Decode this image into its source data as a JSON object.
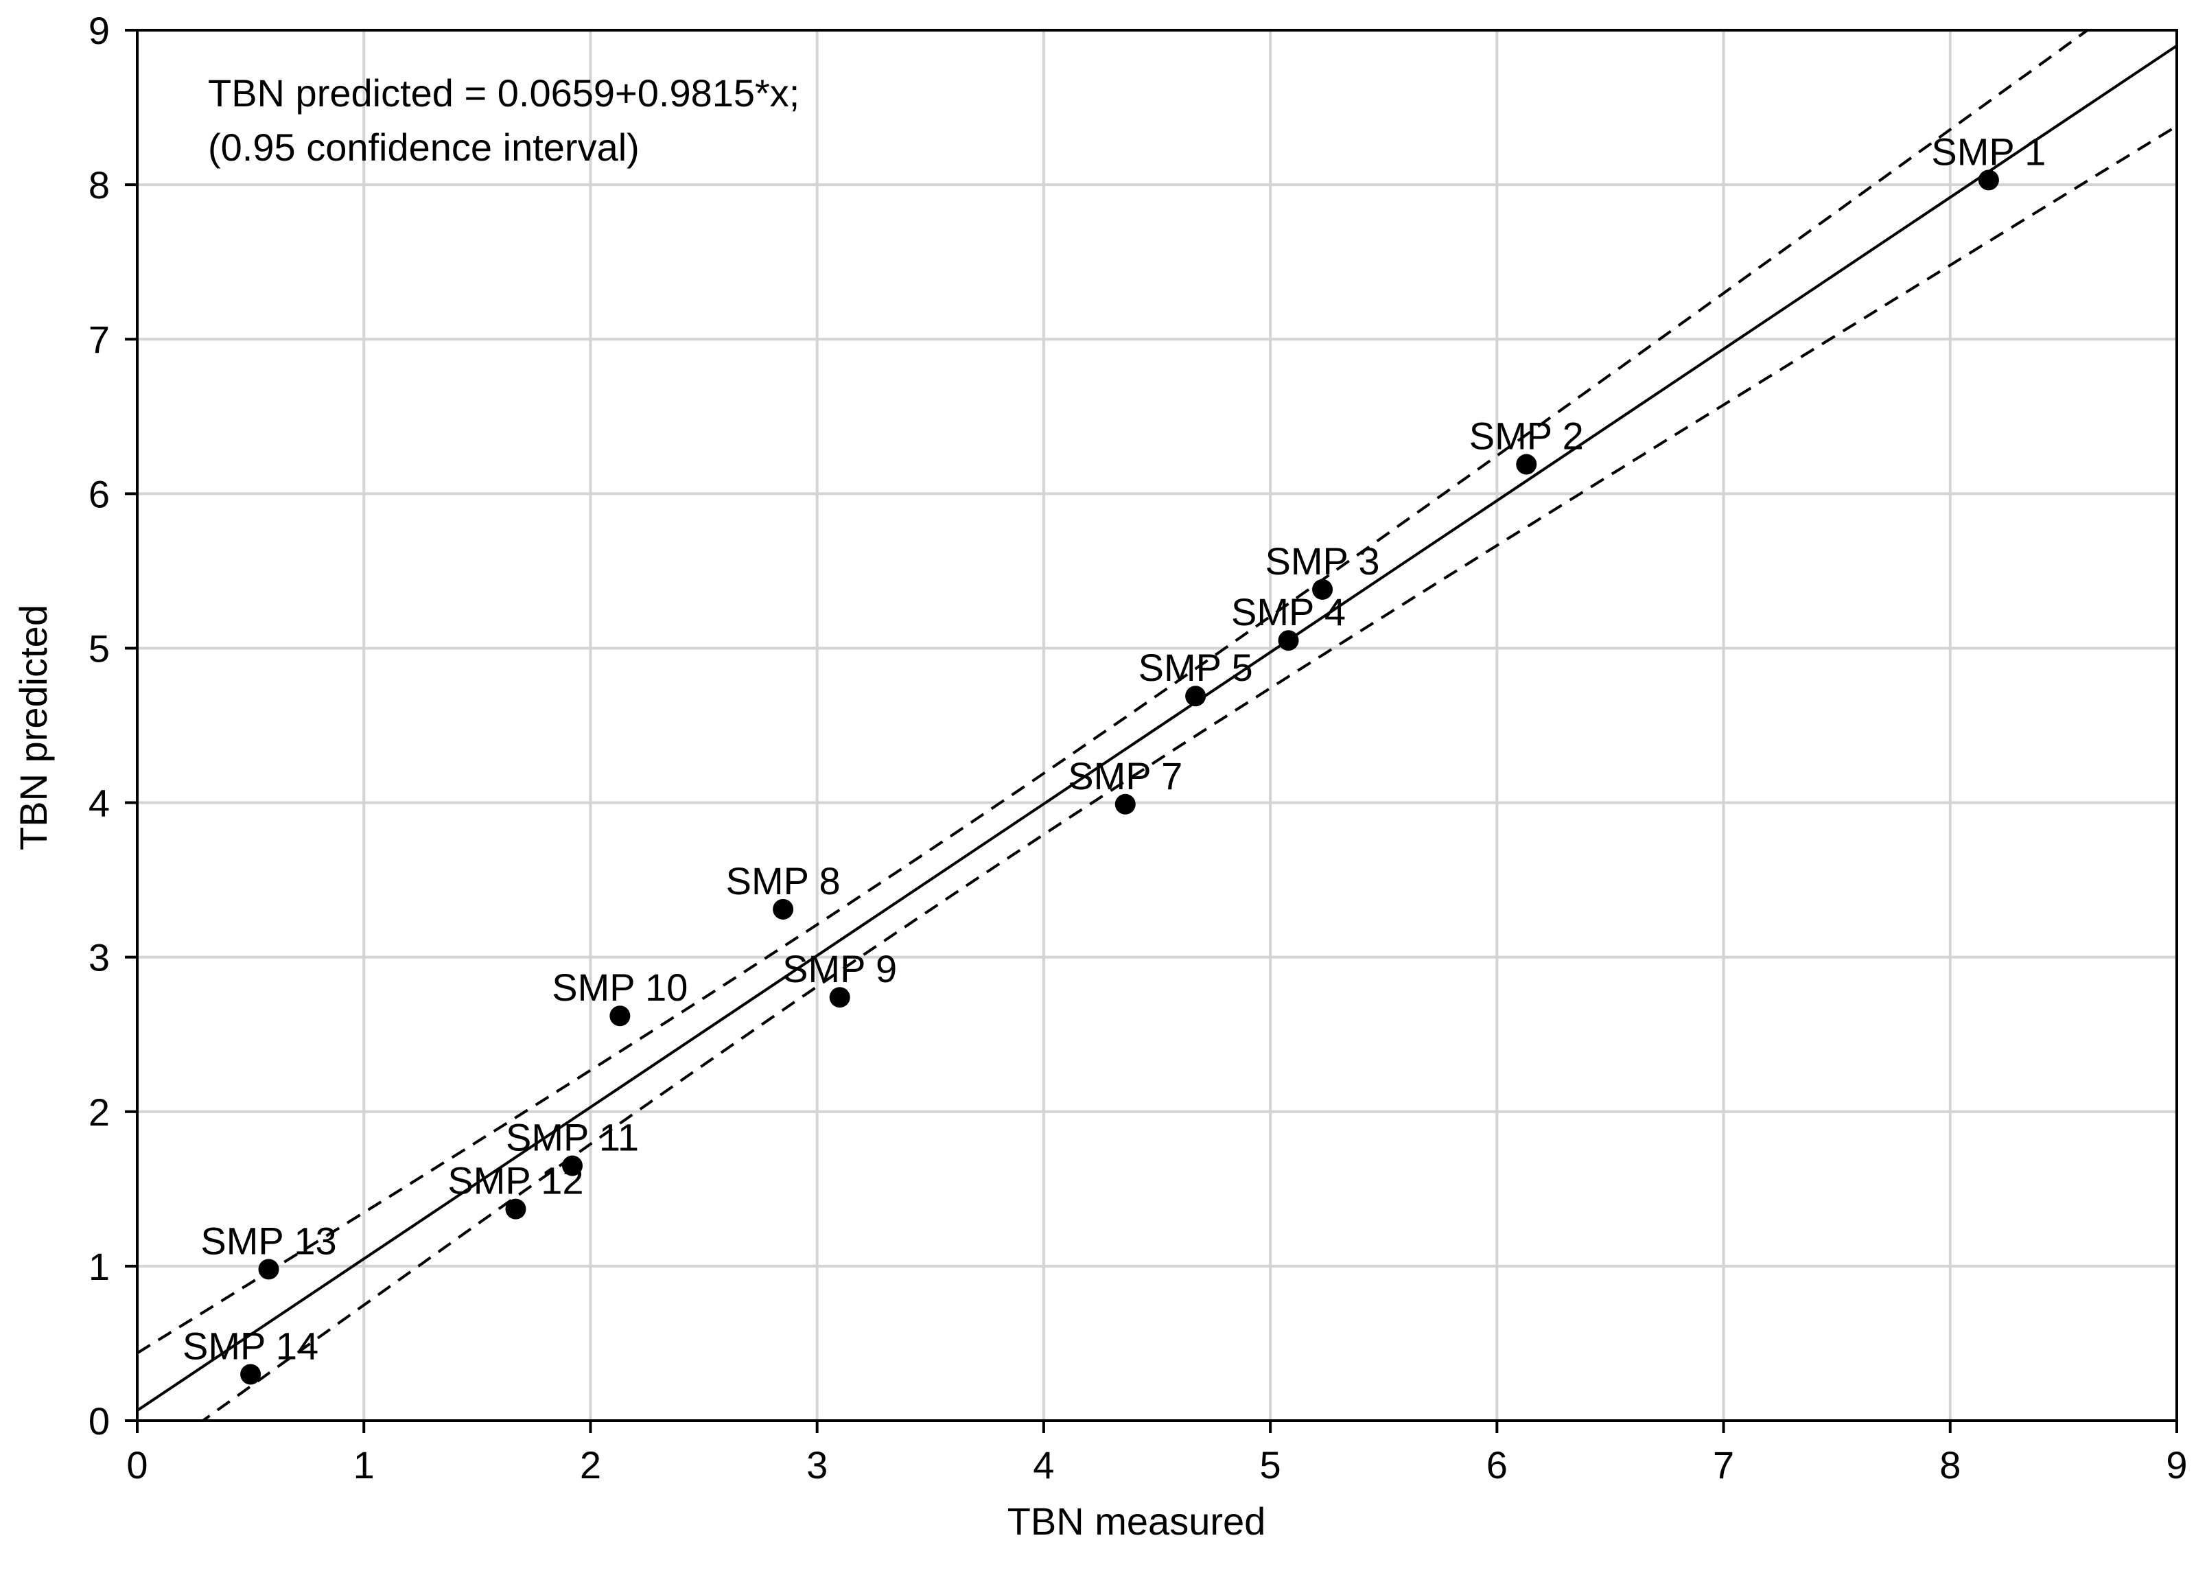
{
  "chart_data": {
    "type": "scatter",
    "xlabel": "TBN measured",
    "ylabel": "TBN predicted",
    "xlim": [
      0,
      9
    ],
    "ylim": [
      0,
      9
    ],
    "x_ticks": [
      "0",
      "1",
      "2",
      "3",
      "4",
      "5",
      "6",
      "7",
      "8",
      "9"
    ],
    "y_ticks": [
      "0",
      "1",
      "2",
      "3",
      "4",
      "5",
      "6",
      "7",
      "8",
      "9"
    ],
    "grid": true,
    "annotation": [
      "TBN predicted = 0.0659+0.9815*x;",
      "(0.95 confidence interval)"
    ],
    "fit": {
      "intercept": 0.0659,
      "slope": 0.9815
    },
    "confidence_level": 0.95,
    "points": [
      {
        "label": "SMP 1",
        "x": 8.17,
        "y": 8.03
      },
      {
        "label": "SMP 2",
        "x": 6.13,
        "y": 6.19
      },
      {
        "label": "SMP 3",
        "x": 5.23,
        "y": 5.38
      },
      {
        "label": "SMP 4",
        "x": 5.08,
        "y": 5.05
      },
      {
        "label": "SMP 5",
        "x": 4.67,
        "y": 4.69
      },
      {
        "label": "SMP 7",
        "x": 4.36,
        "y": 3.99
      },
      {
        "label": "SMP 8",
        "x": 2.85,
        "y": 3.31
      },
      {
        "label": "SMP 9",
        "x": 3.1,
        "y": 2.74
      },
      {
        "label": "SMP 10",
        "x": 2.13,
        "y": 2.62
      },
      {
        "label": "SMP 11",
        "x": 1.92,
        "y": 1.65
      },
      {
        "label": "SMP 12",
        "x": 1.67,
        "y": 1.37
      },
      {
        "label": "SMP 13",
        "x": 0.58,
        "y": 0.98
      },
      {
        "label": "SMP 14",
        "x": 0.5,
        "y": 0.3
      }
    ]
  }
}
